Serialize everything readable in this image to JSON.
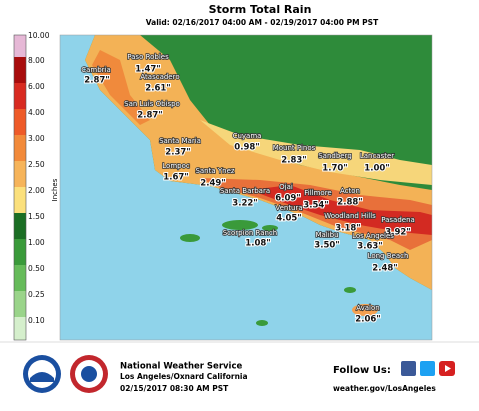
{
  "header": {
    "title": "Storm Total Rain",
    "subtitle": "Valid: 02/16/2017 04:00 AM - 02/19/2017 04:00 PM PST"
  },
  "legend": {
    "unit": "Inches",
    "labels": [
      "10.00",
      "8.00",
      "6.00",
      "4.00",
      "3.00",
      "2.50",
      "2.00",
      "1.50",
      "1.00",
      "0.50",
      "0.25",
      "0.10"
    ]
  },
  "stations": [
    {
      "name": "Paso Robles",
      "value": "1.47\""
    },
    {
      "name": "Cambria",
      "value": "2.87\""
    },
    {
      "name": "Atascadero",
      "value": "2.61\""
    },
    {
      "name": "San Luis Obispo",
      "value": "2.87\""
    },
    {
      "name": "Santa Maria",
      "value": "2.37\""
    },
    {
      "name": "Cuyama",
      "value": "0.98\""
    },
    {
      "name": "Mount Pinos",
      "value": "2.83\""
    },
    {
      "name": "Sandberg",
      "value": "1.70\""
    },
    {
      "name": "Lancaster",
      "value": "1.00\""
    },
    {
      "name": "Lompoc",
      "value": "1.67\""
    },
    {
      "name": "Santa Ynez",
      "value": "2.49\""
    },
    {
      "name": "Santa Barbara",
      "value": "3.22\""
    },
    {
      "name": "Ojai",
      "value": "6.09\""
    },
    {
      "name": "Fillmore",
      "value": "3.54\""
    },
    {
      "name": "Acton",
      "value": "2.88\""
    },
    {
      "name": "Ventura",
      "value": "4.05\""
    },
    {
      "name": "Woodland Hills",
      "value": "3.18\""
    },
    {
      "name": "Pasadena",
      "value": "3.92\""
    },
    {
      "name": "Scorpion Ranch",
      "value": "1.08\""
    },
    {
      "name": "Malibu",
      "value": "3.50\""
    },
    {
      "name": "Los Angeles",
      "value": "3.63\""
    },
    {
      "name": "Long Beach",
      "value": "2.48\""
    },
    {
      "name": "Avalon",
      "value": "2.06\""
    }
  ],
  "footer": {
    "agency": "National Weather Service",
    "office": "Los Angeles/Oxnard California",
    "issued": "02/15/2017 08:30 AM PST",
    "follow": "Follow Us:",
    "website": "weather.gov/LosAngeles"
  }
}
